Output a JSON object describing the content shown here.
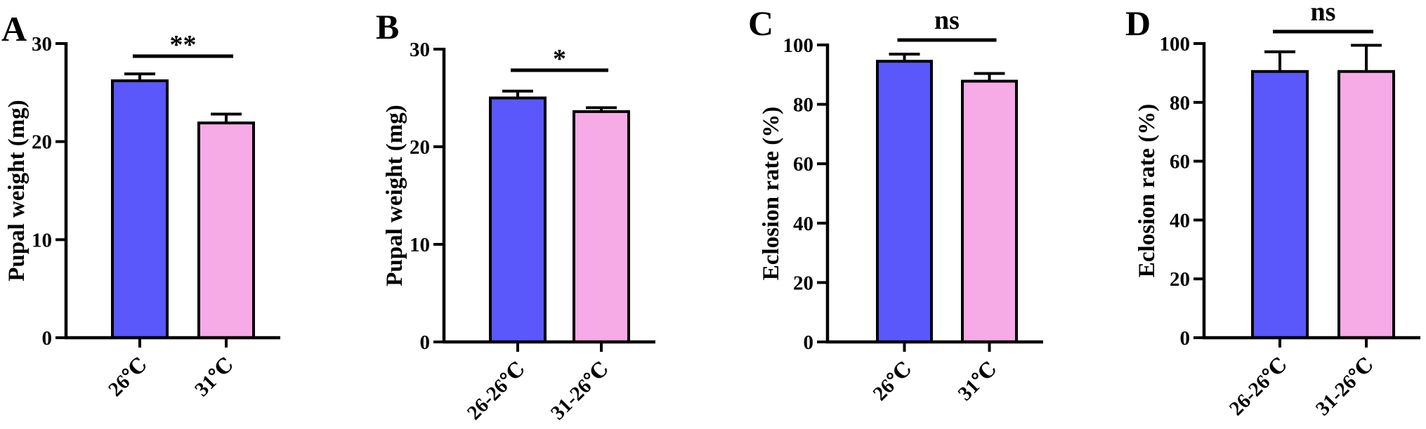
{
  "chart_data": [
    {
      "panel": "A",
      "type": "bar",
      "categories": [
        "26℃",
        "31℃"
      ],
      "values": [
        26.2,
        21.9
      ],
      "errors": [
        0.7,
        0.9
      ],
      "colors": [
        "#5a58fb",
        "#f6aae6"
      ],
      "ylabel": "Pupal weight (mg)",
      "ylim": [
        0,
        30
      ],
      "yticks": [
        "0",
        "10",
        "20",
        "30"
      ],
      "significance": "**",
      "grid": false
    },
    {
      "panel": "B",
      "type": "bar",
      "categories": [
        "26-26℃",
        "31-26℃"
      ],
      "values": [
        25.0,
        23.6
      ],
      "errors": [
        0.7,
        0.4
      ],
      "colors": [
        "#5a58fb",
        "#f6aae6"
      ],
      "ylabel": "Pupal weight (mg)",
      "ylim": [
        0,
        30
      ],
      "yticks": [
        "0",
        "10",
        "20",
        "30"
      ],
      "significance": "*",
      "grid": false
    },
    {
      "panel": "C",
      "type": "bar",
      "categories": [
        "26℃",
        "31℃"
      ],
      "values": [
        94.5,
        87.8
      ],
      "errors": [
        2.4,
        2.6
      ],
      "colors": [
        "#5a58fb",
        "#f6aae6"
      ],
      "ylabel": "Eclosion rate (%)",
      "ylim": [
        0,
        100
      ],
      "yticks": [
        "0",
        "20",
        "40",
        "60",
        "80",
        "100"
      ],
      "significance": "ns",
      "grid": false
    },
    {
      "panel": "D",
      "type": "bar",
      "categories": [
        "26-26℃",
        "31-26℃"
      ],
      "values": [
        90.5,
        90.5
      ],
      "errors": [
        6.7,
        8.9
      ],
      "colors": [
        "#5a58fb",
        "#f6aae6"
      ],
      "ylabel": "Eclosion rate (%)",
      "ylim": [
        0,
        100
      ],
      "yticks": [
        "0",
        "20",
        "40",
        "60",
        "80",
        "100"
      ],
      "significance": "ns",
      "grid": false
    }
  ]
}
